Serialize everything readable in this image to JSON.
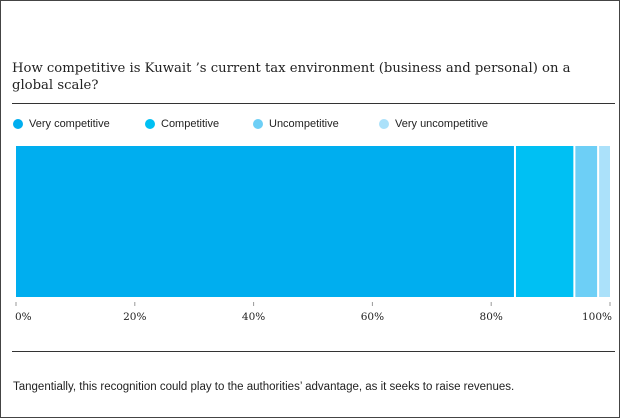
{
  "title": "How competitive is Kuwait ’s current tax environment (business and personal) on a global scale?",
  "footnote": "Tangentially, this recognition could play to the authorities’ advantage, as it seeks to raise revenues.",
  "chart_data": {
    "type": "bar",
    "orientation": "horizontal",
    "stacked": true,
    "title": "How competitive is Kuwait ’s current tax environment (business and personal) on a global scale?",
    "xlabel": "",
    "ylabel": "",
    "xlim": [
      0,
      100
    ],
    "categories": [
      ""
    ],
    "series": [
      {
        "name": "Very competitive",
        "values": [
          84
        ],
        "color": "#00AEEF"
      },
      {
        "name": "Competitive",
        "values": [
          10
        ],
        "color": "#00C0F3"
      },
      {
        "name": "Uncompetitive",
        "values": [
          4
        ],
        "color": "#6DCFF6"
      },
      {
        "name": "Very uncompetitive",
        "values": [
          2
        ],
        "color": "#ABE1FA"
      }
    ],
    "ticks": [
      0,
      20,
      40,
      60,
      80,
      100
    ],
    "tick_labels": [
      "0%",
      "20%",
      "40%",
      "60%",
      "80%",
      "100%"
    ],
    "legend": "top-left",
    "grid": false
  }
}
